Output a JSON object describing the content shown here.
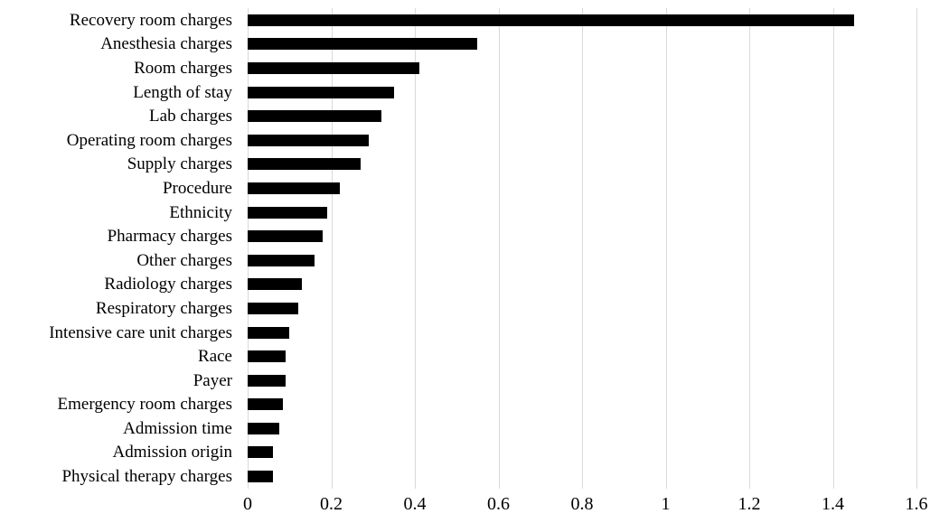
{
  "chart_data": {
    "type": "bar",
    "orientation": "horizontal",
    "title": "",
    "xlabel": "",
    "ylabel": "",
    "categories": [
      "Recovery room charges",
      "Anesthesia charges",
      "Room charges",
      "Length of stay",
      "Lab charges",
      "Operating room charges",
      "Supply charges",
      "Procedure",
      "Ethnicity",
      "Pharmacy charges",
      "Other charges",
      "Radiology charges",
      "Respiratory charges",
      "Intensive care unit charges",
      "Race",
      "Payer",
      "Emergency room charges",
      "Admission time",
      "Admission origin",
      "Physical therapy charges"
    ],
    "values": [
      1.45,
      0.55,
      0.41,
      0.35,
      0.32,
      0.29,
      0.27,
      0.22,
      0.19,
      0.18,
      0.16,
      0.13,
      0.12,
      0.1,
      0.09,
      0.09,
      0.085,
      0.075,
      0.06,
      0.06
    ],
    "xlim": [
      0,
      1.6
    ],
    "xtick_labels": [
      "0",
      "0.2",
      "0.4",
      "0.6",
      "0.8",
      "1",
      "1.2",
      "1.4",
      "1.6"
    ],
    "xtick_values": [
      0,
      0.2,
      0.4,
      0.6,
      0.8,
      1.0,
      1.2,
      1.4,
      1.6
    ],
    "grid": "vertical",
    "legend": "none",
    "colors": {
      "bar": "#000000",
      "gridline": "#d9d9d9",
      "text": "#000000",
      "background": "#ffffff"
    }
  }
}
